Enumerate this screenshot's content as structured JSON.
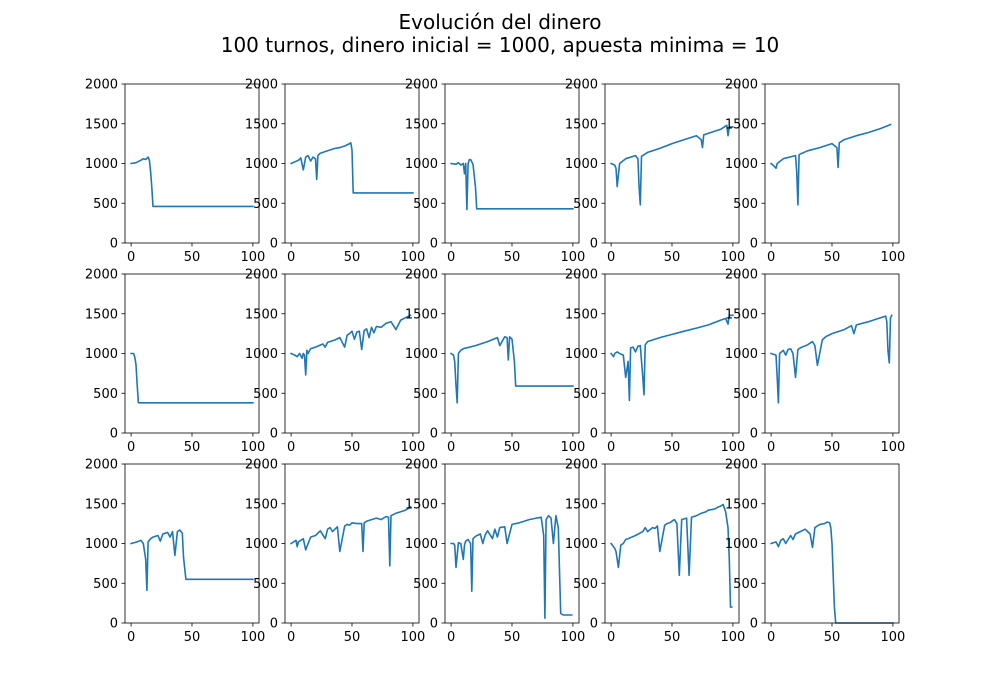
{
  "figure": {
    "title_line1": "Evolución del dinero",
    "title_line2": "100 turnos, dinero inicial = 1000, apuesta minima = 10",
    "line_color": "#1f77b4"
  },
  "chart_data": [
    {
      "type": "line",
      "xlim": [
        0,
        100
      ],
      "ylim": [
        0,
        2000
      ],
      "xticks": [
        0,
        50,
        100
      ],
      "yticks": [
        0,
        500,
        1000,
        1500,
        2000
      ],
      "grid": false,
      "x": [
        0,
        4,
        8,
        10,
        12,
        14,
        15,
        16,
        17,
        18,
        19,
        100
      ],
      "values": [
        1000,
        1010,
        1040,
        1060,
        1050,
        1080,
        1040,
        900,
        700,
        460,
        460,
        460
      ]
    },
    {
      "type": "line",
      "xlim": [
        0,
        100
      ],
      "ylim": [
        0,
        2000
      ],
      "xticks": [
        0,
        50,
        100
      ],
      "yticks": [
        0,
        500,
        1000,
        1500,
        2000
      ],
      "grid": false,
      "x": [
        0,
        6,
        8,
        10,
        12,
        14,
        16,
        18,
        20,
        21,
        22,
        24,
        30,
        36,
        40,
        44,
        48,
        49,
        50,
        51,
        100
      ],
      "values": [
        1000,
        1040,
        1070,
        920,
        1080,
        1100,
        1030,
        1080,
        1060,
        800,
        1100,
        1130,
        1160,
        1190,
        1200,
        1220,
        1250,
        1260,
        1170,
        630,
        630
      ]
    },
    {
      "type": "line",
      "xlim": [
        0,
        100
      ],
      "ylim": [
        0,
        2000
      ],
      "xticks": [
        0,
        50,
        100
      ],
      "yticks": [
        0,
        500,
        1000,
        1500,
        2000
      ],
      "grid": false,
      "x": [
        0,
        4,
        6,
        8,
        10,
        11,
        12,
        13,
        14,
        15,
        16,
        18,
        20,
        21,
        22,
        100
      ],
      "values": [
        1000,
        990,
        1010,
        980,
        1000,
        870,
        1000,
        420,
        1000,
        1050,
        1050,
        990,
        700,
        430,
        430,
        430
      ]
    },
    {
      "type": "line",
      "xlim": [
        0,
        100
      ],
      "ylim": [
        0,
        2000
      ],
      "xticks": [
        0,
        50,
        100
      ],
      "yticks": [
        0,
        500,
        1000,
        1500,
        2000
      ],
      "grid": false,
      "x": [
        0,
        3,
        4,
        5,
        7,
        12,
        20,
        22,
        23,
        24,
        25,
        30,
        40,
        50,
        60,
        70,
        74,
        75,
        76,
        80,
        90,
        95,
        96,
        97,
        100
      ],
      "values": [
        1000,
        980,
        940,
        710,
        1000,
        1060,
        1100,
        1060,
        700,
        480,
        1090,
        1140,
        1190,
        1250,
        1300,
        1350,
        1300,
        1200,
        1360,
        1380,
        1430,
        1480,
        1350,
        1460,
        1460
      ]
    },
    {
      "type": "line",
      "xlim": [
        0,
        100
      ],
      "ylim": [
        0,
        2000
      ],
      "xticks": [
        0,
        50,
        100
      ],
      "yticks": [
        0,
        500,
        1000,
        1500,
        2000
      ],
      "grid": false,
      "x": [
        0,
        3,
        4,
        5,
        10,
        20,
        21,
        22,
        23,
        24,
        30,
        40,
        50,
        54,
        55,
        56,
        60,
        70,
        80,
        90,
        98
      ],
      "values": [
        1000,
        960,
        940,
        1000,
        1060,
        1100,
        900,
        480,
        1110,
        1120,
        1160,
        1200,
        1250,
        1200,
        950,
        1260,
        1300,
        1350,
        1390,
        1440,
        1490
      ]
    },
    {
      "type": "line",
      "xlim": [
        0,
        100
      ],
      "ylim": [
        0,
        2000
      ],
      "xticks": [
        0,
        50,
        100
      ],
      "yticks": [
        0,
        500,
        1000,
        1500,
        2000
      ],
      "grid": false,
      "x": [
        0,
        2,
        3,
        4,
        5,
        6,
        7,
        100
      ],
      "values": [
        1000,
        1000,
        960,
        860,
        600,
        380,
        380,
        380
      ]
    },
    {
      "type": "line",
      "xlim": [
        0,
        100
      ],
      "ylim": [
        0,
        2000
      ],
      "xticks": [
        0,
        50,
        100
      ],
      "yticks": [
        0,
        500,
        1000,
        1500,
        2000
      ],
      "grid": false,
      "x": [
        0,
        3,
        5,
        7,
        9,
        10,
        11,
        12,
        13,
        14,
        16,
        20,
        26,
        28,
        30,
        36,
        40,
        44,
        46,
        48,
        50,
        52,
        54,
        56,
        58,
        60,
        62,
        64,
        66,
        68,
        70,
        74,
        78,
        82,
        86,
        90,
        94,
        98
      ],
      "values": [
        1000,
        980,
        960,
        1000,
        940,
        1000,
        980,
        730,
        1040,
        1000,
        1060,
        1080,
        1120,
        1080,
        1140,
        1170,
        1200,
        1080,
        1230,
        1250,
        1280,
        1180,
        1270,
        1280,
        1050,
        1290,
        1310,
        1200,
        1330,
        1260,
        1340,
        1330,
        1380,
        1400,
        1300,
        1420,
        1450,
        1480
      ]
    },
    {
      "type": "line",
      "xlim": [
        0,
        100
      ],
      "ylim": [
        0,
        2000
      ],
      "xticks": [
        0,
        50,
        100
      ],
      "yticks": [
        0,
        500,
        1000,
        1500,
        2000
      ],
      "grid": false,
      "x": [
        0,
        2,
        3,
        4,
        5,
        6,
        8,
        10,
        20,
        30,
        38,
        40,
        44,
        46,
        47,
        48,
        50,
        52,
        53,
        100
      ],
      "values": [
        1000,
        980,
        900,
        600,
        380,
        1000,
        1040,
        1060,
        1100,
        1150,
        1200,
        1100,
        1210,
        1200,
        920,
        1210,
        1180,
        900,
        590,
        590
      ]
    },
    {
      "type": "line",
      "xlim": [
        0,
        100
      ],
      "ylim": [
        0,
        2000
      ],
      "xticks": [
        0,
        50,
        100
      ],
      "yticks": [
        0,
        500,
        1000,
        1500,
        2000
      ],
      "grid": false,
      "x": [
        0,
        2,
        3,
        5,
        7,
        10,
        12,
        14,
        15,
        16,
        18,
        20,
        22,
        24,
        26,
        27,
        28,
        30,
        40,
        50,
        60,
        70,
        80,
        90,
        94,
        96,
        97,
        100
      ],
      "values": [
        1000,
        960,
        1000,
        1020,
        1000,
        980,
        700,
        900,
        410,
        1070,
        1080,
        1020,
        1090,
        1100,
        700,
        480,
        1110,
        1150,
        1200,
        1240,
        1280,
        1320,
        1360,
        1420,
        1440,
        1370,
        1480,
        1480
      ]
    },
    {
      "type": "line",
      "xlim": [
        0,
        100
      ],
      "ylim": [
        0,
        2000
      ],
      "xticks": [
        0,
        50,
        100
      ],
      "yticks": [
        0,
        500,
        1000,
        1500,
        2000
      ],
      "grid": false,
      "x": [
        0,
        4,
        5,
        6,
        7,
        10,
        12,
        14,
        16,
        18,
        20,
        22,
        24,
        30,
        34,
        36,
        38,
        42,
        44,
        46,
        50,
        60,
        66,
        68,
        70,
        80,
        86,
        90,
        94,
        95,
        96,
        97,
        98,
        99
      ],
      "values": [
        1000,
        980,
        700,
        380,
        1000,
        1040,
        980,
        1050,
        1060,
        1000,
        700,
        1050,
        1070,
        1110,
        1150,
        1100,
        850,
        1170,
        1200,
        1220,
        1250,
        1300,
        1350,
        1250,
        1360,
        1400,
        1430,
        1450,
        1470,
        1400,
        1030,
        880,
        1450,
        1480
      ]
    },
    {
      "type": "line",
      "xlim": [
        0,
        100
      ],
      "ylim": [
        0,
        2000
      ],
      "xticks": [
        0,
        50,
        100
      ],
      "yticks": [
        0,
        500,
        1000,
        1500,
        2000
      ],
      "grid": false,
      "x": [
        0,
        5,
        8,
        10,
        12,
        13,
        14,
        16,
        18,
        22,
        24,
        26,
        30,
        32,
        34,
        36,
        38,
        40,
        42,
        43,
        45,
        100
      ],
      "values": [
        1000,
        1020,
        1040,
        1000,
        800,
        410,
        1020,
        1060,
        1080,
        1100,
        1030,
        1120,
        1140,
        1080,
        1150,
        850,
        1150,
        1170,
        1130,
        830,
        550,
        550
      ]
    },
    {
      "type": "line",
      "xlim": [
        0,
        100
      ],
      "ylim": [
        0,
        2000
      ],
      "xticks": [
        0,
        50,
        100
      ],
      "yticks": [
        0,
        500,
        1000,
        1500,
        2000
      ],
      "grid": false,
      "x": [
        0,
        4,
        5,
        6,
        10,
        12,
        16,
        20,
        24,
        28,
        30,
        32,
        34,
        38,
        40,
        44,
        46,
        48,
        50,
        54,
        58,
        59,
        60,
        62,
        66,
        70,
        74,
        78,
        80,
        81,
        82,
        86,
        90,
        94,
        98
      ],
      "values": [
        1000,
        1040,
        960,
        1020,
        1060,
        920,
        1080,
        1100,
        1160,
        1060,
        1180,
        1200,
        1150,
        1210,
        900,
        1220,
        1240,
        1230,
        1260,
        1250,
        1250,
        900,
        1260,
        1280,
        1300,
        1320,
        1300,
        1340,
        1330,
        720,
        1350,
        1380,
        1400,
        1420,
        1460
      ]
    },
    {
      "type": "line",
      "xlim": [
        0,
        100
      ],
      "ylim": [
        0,
        2000
      ],
      "xticks": [
        0,
        50,
        100
      ],
      "yticks": [
        0,
        500,
        1000,
        1500,
        2000
      ],
      "grid": false,
      "x": [
        0,
        2,
        3,
        4,
        6,
        8,
        10,
        11,
        12,
        14,
        16,
        17,
        18,
        20,
        24,
        26,
        28,
        30,
        34,
        36,
        38,
        40,
        44,
        46,
        50,
        56,
        60,
        64,
        70,
        74,
        76,
        77,
        78,
        80,
        82,
        84,
        86,
        88,
        90,
        92,
        99
      ],
      "values": [
        1000,
        1000,
        980,
        700,
        1010,
        1000,
        800,
        980,
        1030,
        1050,
        1000,
        400,
        1060,
        1090,
        1120,
        1000,
        1110,
        1160,
        1060,
        1180,
        1080,
        1200,
        1210,
        1000,
        1240,
        1260,
        1280,
        1300,
        1320,
        1330,
        1100,
        60,
        1300,
        1350,
        1320,
        1000,
        1350,
        1200,
        120,
        100,
        100
      ]
    },
    {
      "type": "line",
      "xlim": [
        0,
        100
      ],
      "ylim": [
        0,
        2000
      ],
      "xticks": [
        0,
        50,
        100
      ],
      "yticks": [
        0,
        500,
        1000,
        1500,
        2000
      ],
      "grid": false,
      "x": [
        0,
        2,
        3,
        4,
        6,
        8,
        10,
        12,
        14,
        20,
        26,
        28,
        30,
        34,
        36,
        38,
        40,
        44,
        46,
        48,
        50,
        52,
        54,
        56,
        58,
        60,
        62,
        64,
        66,
        70,
        74,
        76,
        78,
        80,
        84,
        86,
        88,
        90,
        92,
        94,
        96,
        97,
        98,
        99
      ],
      "values": [
        1000,
        960,
        940,
        900,
        700,
        980,
        1000,
        1050,
        1060,
        1100,
        1150,
        1200,
        1150,
        1200,
        1190,
        1220,
        900,
        1230,
        1250,
        1260,
        1280,
        1300,
        1250,
        600,
        1300,
        1310,
        1320,
        600,
        1330,
        1350,
        1380,
        1390,
        1400,
        1420,
        1430,
        1440,
        1460,
        1470,
        1490,
        1400,
        1200,
        800,
        200,
        200
      ]
    },
    {
      "type": "line",
      "xlim": [
        0,
        100
      ],
      "ylim": [
        0,
        2000
      ],
      "xticks": [
        0,
        50,
        100
      ],
      "yticks": [
        0,
        500,
        1000,
        1500,
        2000
      ],
      "grid": false,
      "x": [
        0,
        4,
        6,
        8,
        10,
        12,
        16,
        18,
        20,
        24,
        28,
        32,
        34,
        36,
        38,
        40,
        44,
        46,
        48,
        49,
        50,
        51,
        52,
        53,
        54,
        100
      ],
      "values": [
        1000,
        1020,
        960,
        1040,
        1060,
        1000,
        1100,
        1050,
        1120,
        1150,
        1180,
        1120,
        950,
        1200,
        1220,
        1240,
        1250,
        1270,
        1260,
        1200,
        1000,
        600,
        200,
        0,
        0,
        0
      ]
    }
  ]
}
